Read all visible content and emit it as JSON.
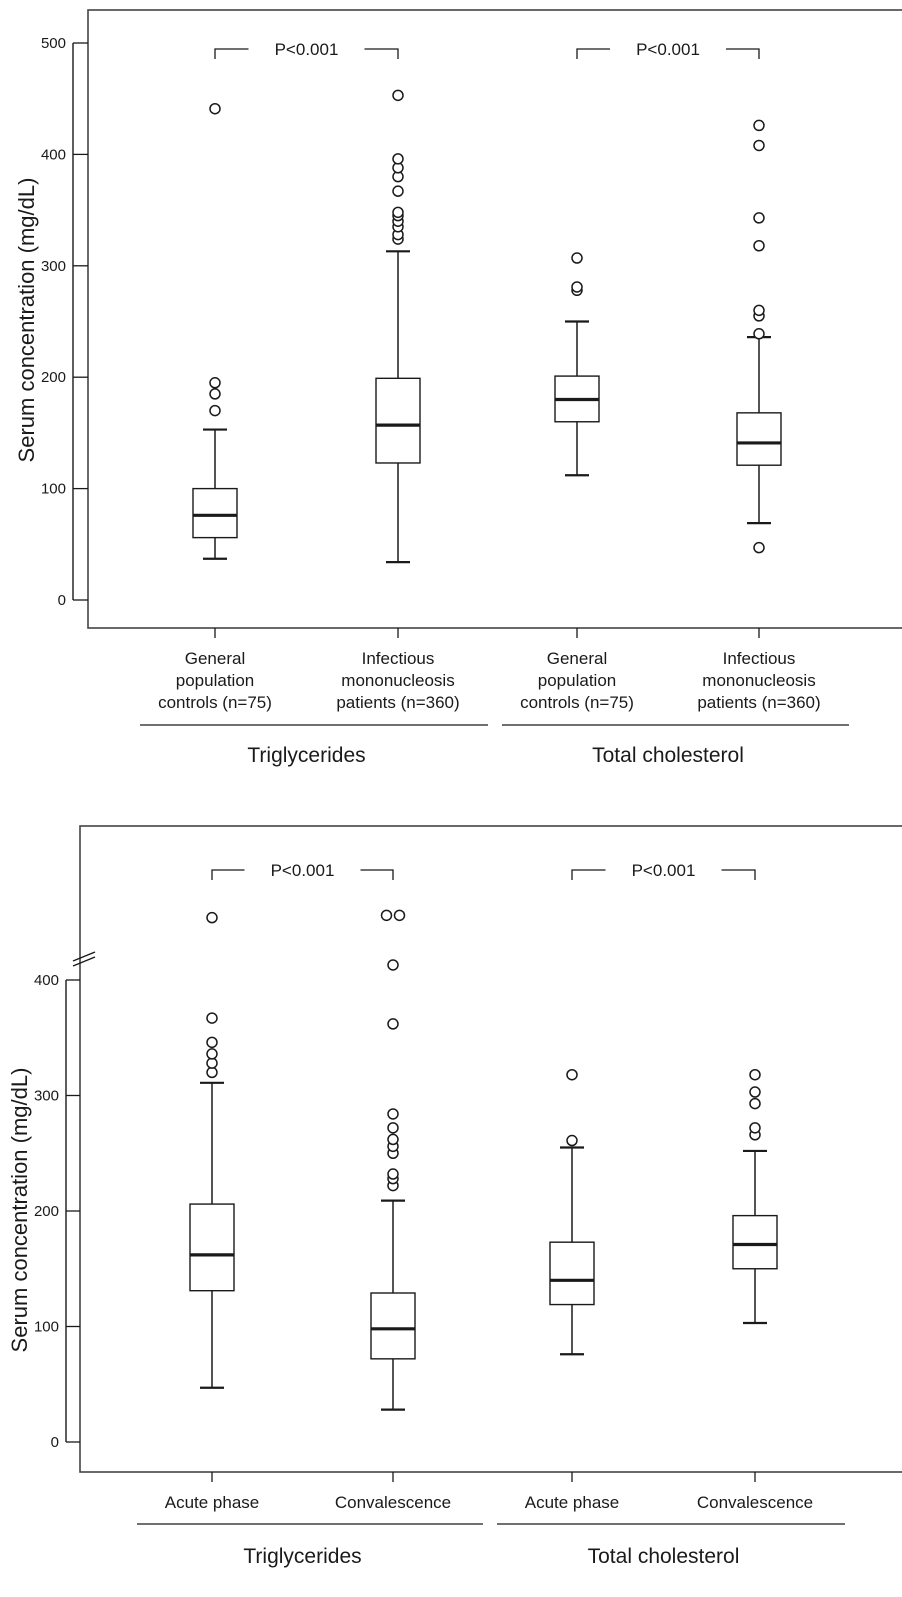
{
  "colors": {
    "ink": "#1a1a1a",
    "frame": "#444444",
    "background": "#ffffff"
  },
  "chart_data": [
    {
      "type": "box",
      "ylabel": "Serum concentration (mg/dL)",
      "ylim": [
        0,
        500
      ],
      "yticks": [
        "0",
        "100",
        "200",
        "300",
        "400",
        "500"
      ],
      "group_labels": [
        "Triglycerides",
        "Total cholesterol"
      ],
      "category_labels": [
        [
          "General",
          "population",
          "controls (n=75)"
        ],
        [
          "Infectious",
          "mononucleosis",
          "patients (n=360)"
        ],
        [
          "General",
          "population",
          "controls (n=75)"
        ],
        [
          "Infectious",
          "mononucleosis",
          "patients (n=360)"
        ]
      ],
      "boxes": [
        {
          "group": "Triglycerides",
          "category": "General population controls (n=75)",
          "whisker_low": 37,
          "q1": 56,
          "median": 76,
          "q3": 100,
          "whisker_high": 153,
          "outliers": [
            170,
            185,
            195,
            441
          ]
        },
        {
          "group": "Triglycerides",
          "category": "Infectious mononucleosis patients (n=360)",
          "whisker_low": 34,
          "q1": 123,
          "median": 157,
          "q3": 199,
          "whisker_high": 313,
          "outliers": [
            324,
            328,
            335,
            340,
            345,
            348,
            367,
            380,
            388,
            396,
            453
          ]
        },
        {
          "group": "Total cholesterol",
          "category": "General population controls (n=75)",
          "whisker_low": 112,
          "q1": 160,
          "median": 180,
          "q3": 201,
          "whisker_high": 250,
          "outliers": [
            278,
            281,
            307
          ]
        },
        {
          "group": "Total cholesterol",
          "category": "Infectious mononucleosis patients (n=360)",
          "whisker_low": 69,
          "q1": 121,
          "median": 141,
          "q3": 168,
          "whisker_high": 236,
          "outliers": [
            47,
            239,
            255,
            260,
            318,
            343,
            408,
            426
          ]
        }
      ],
      "comparisons": [
        {
          "label": "P<0.001",
          "between": [
            0,
            1
          ]
        },
        {
          "label": "P<0.001",
          "between": [
            2,
            3
          ]
        }
      ]
    },
    {
      "type": "box",
      "ylabel": "Serum concentration (mg/dL)",
      "ylim": [
        0,
        400
      ],
      "axis_break": true,
      "yticks": [
        "0",
        "100",
        "200",
        "300",
        "400"
      ],
      "group_labels": [
        "Triglycerides",
        "Total cholesterol"
      ],
      "category_labels": [
        [
          "Acute phase"
        ],
        [
          "Convalescence"
        ],
        [
          "Acute phase"
        ],
        [
          "Convalescence"
        ]
      ],
      "boxes": [
        {
          "group": "Triglycerides",
          "category": "Acute phase",
          "whisker_low": 47,
          "q1": 131,
          "median": 162,
          "q3": 206,
          "whisker_high": 311,
          "outliers": [
            320,
            328,
            336,
            346,
            367,
            454
          ]
        },
        {
          "group": "Triglycerides",
          "category": "Convalescence",
          "whisker_low": 28,
          "q1": 72,
          "median": 98,
          "q3": 129,
          "whisker_high": 209,
          "outliers": [
            222,
            228,
            232,
            250,
            256,
            262,
            272,
            284,
            362,
            413,
            456,
            456
          ]
        },
        {
          "group": "Total cholesterol",
          "category": "Acute phase",
          "whisker_low": 76,
          "q1": 119,
          "median": 140,
          "q3": 173,
          "whisker_high": 255,
          "outliers": [
            261,
            318
          ]
        },
        {
          "group": "Total cholesterol",
          "category": "Convalescence",
          "whisker_low": 103,
          "q1": 150,
          "median": 171,
          "q3": 196,
          "whisker_high": 252,
          "outliers": [
            266,
            272,
            293,
            303,
            318
          ]
        }
      ],
      "comparisons": [
        {
          "label": "P<0.001",
          "between": [
            0,
            1
          ]
        },
        {
          "label": "P<0.001",
          "between": [
            2,
            3
          ]
        }
      ]
    }
  ]
}
